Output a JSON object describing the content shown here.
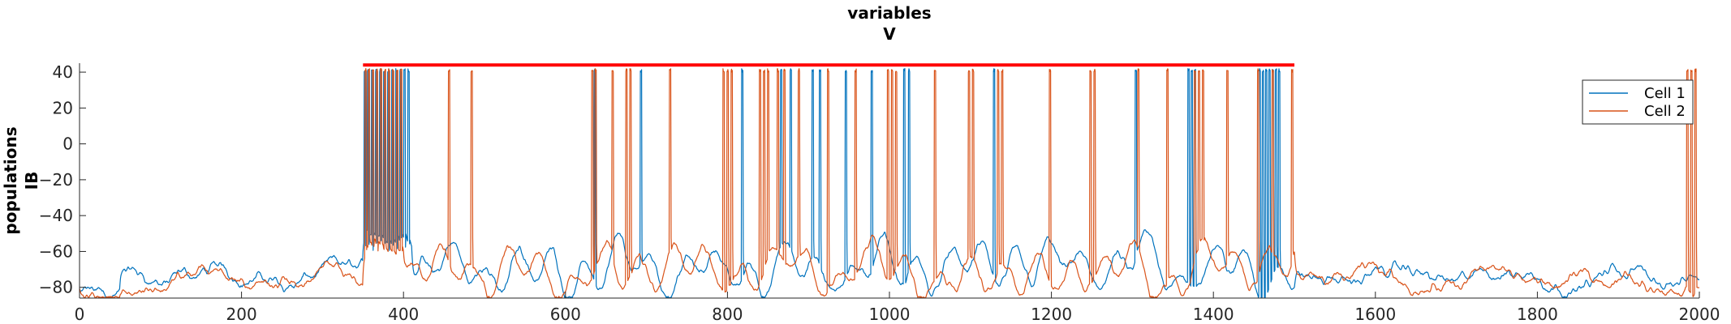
{
  "chart_data": {
    "type": "line",
    "title": [
      "variables",
      "V"
    ],
    "ylabel": [
      "populations",
      "IB"
    ],
    "xlabel": "",
    "xlim": [
      0,
      2000
    ],
    "ylim": [
      -86,
      45
    ],
    "x_ticks": [
      0,
      200,
      400,
      600,
      800,
      1000,
      1200,
      1400,
      1600,
      1800,
      2000
    ],
    "y_ticks": [
      -80,
      -60,
      -40,
      -20,
      0,
      20,
      40
    ],
    "tick_labels_x": [
      "0",
      "200",
      "400",
      "600",
      "800",
      "1000",
      "1200",
      "1400",
      "1600",
      "1800",
      "2000"
    ],
    "tick_labels_y": [
      "−80",
      "−60",
      "−40",
      "−20",
      "0",
      "20",
      "40"
    ],
    "legend_position": "top-right",
    "stimulus_bar": {
      "x_start": 350,
      "x_end": 1500,
      "y": 44,
      "color": "#ff0000"
    },
    "series": [
      {
        "name": "Cell 1",
        "color": "#0072bd",
        "baseline": -74,
        "burst_range": [
          350,
          410
        ],
        "burst_floor": -52,
        "spikes": [
          352,
          356,
          361,
          366,
          371,
          376,
          381,
          386,
          391,
          396,
          401,
          406,
          636,
          693,
          818,
          866,
          878,
          905,
          914,
          946,
          978,
          1018,
          1024,
          1129,
          1304,
          1369,
          1373,
          1377,
          1457,
          1461,
          1465,
          1469,
          1473,
          1477,
          1481
        ]
      },
      {
        "name": "Cell 2",
        "color": "#d95319",
        "baseline": -76,
        "burst_range": [
          350,
          400
        ],
        "burst_floor": -55,
        "spikes": [
          353,
          357,
          362,
          367,
          372,
          377,
          382,
          387,
          392,
          397,
          456,
          484,
          633,
          637,
          658,
          675,
          680,
          729,
          795,
          800,
          805,
          840,
          845,
          850,
          862,
          870,
          888,
          924,
          958,
          998,
          1003,
          1008,
          1056,
          1098,
          1103,
          1134,
          1139,
          1198,
          1248,
          1253,
          1307,
          1343,
          1377,
          1382,
          1387,
          1417,
          1455,
          1473,
          1497,
          1985,
          1990,
          1995
        ]
      }
    ]
  }
}
